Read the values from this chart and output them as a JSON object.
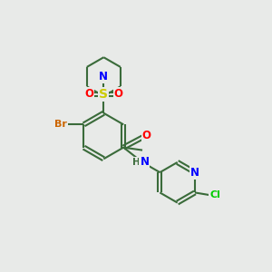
{
  "background_color": "#e8eae8",
  "bond_color": "#3a6b3a",
  "bond_width": 1.5,
  "atom_colors": {
    "N": "#0000ff",
    "O": "#ff0000",
    "S": "#cccc00",
    "Br": "#cc6600",
    "Cl": "#00cc00",
    "C": "#3a6b3a",
    "H": "#3a6b3a"
  },
  "font_size": 8.5,
  "fig_width": 3.0,
  "fig_height": 3.0,
  "dpi": 100
}
